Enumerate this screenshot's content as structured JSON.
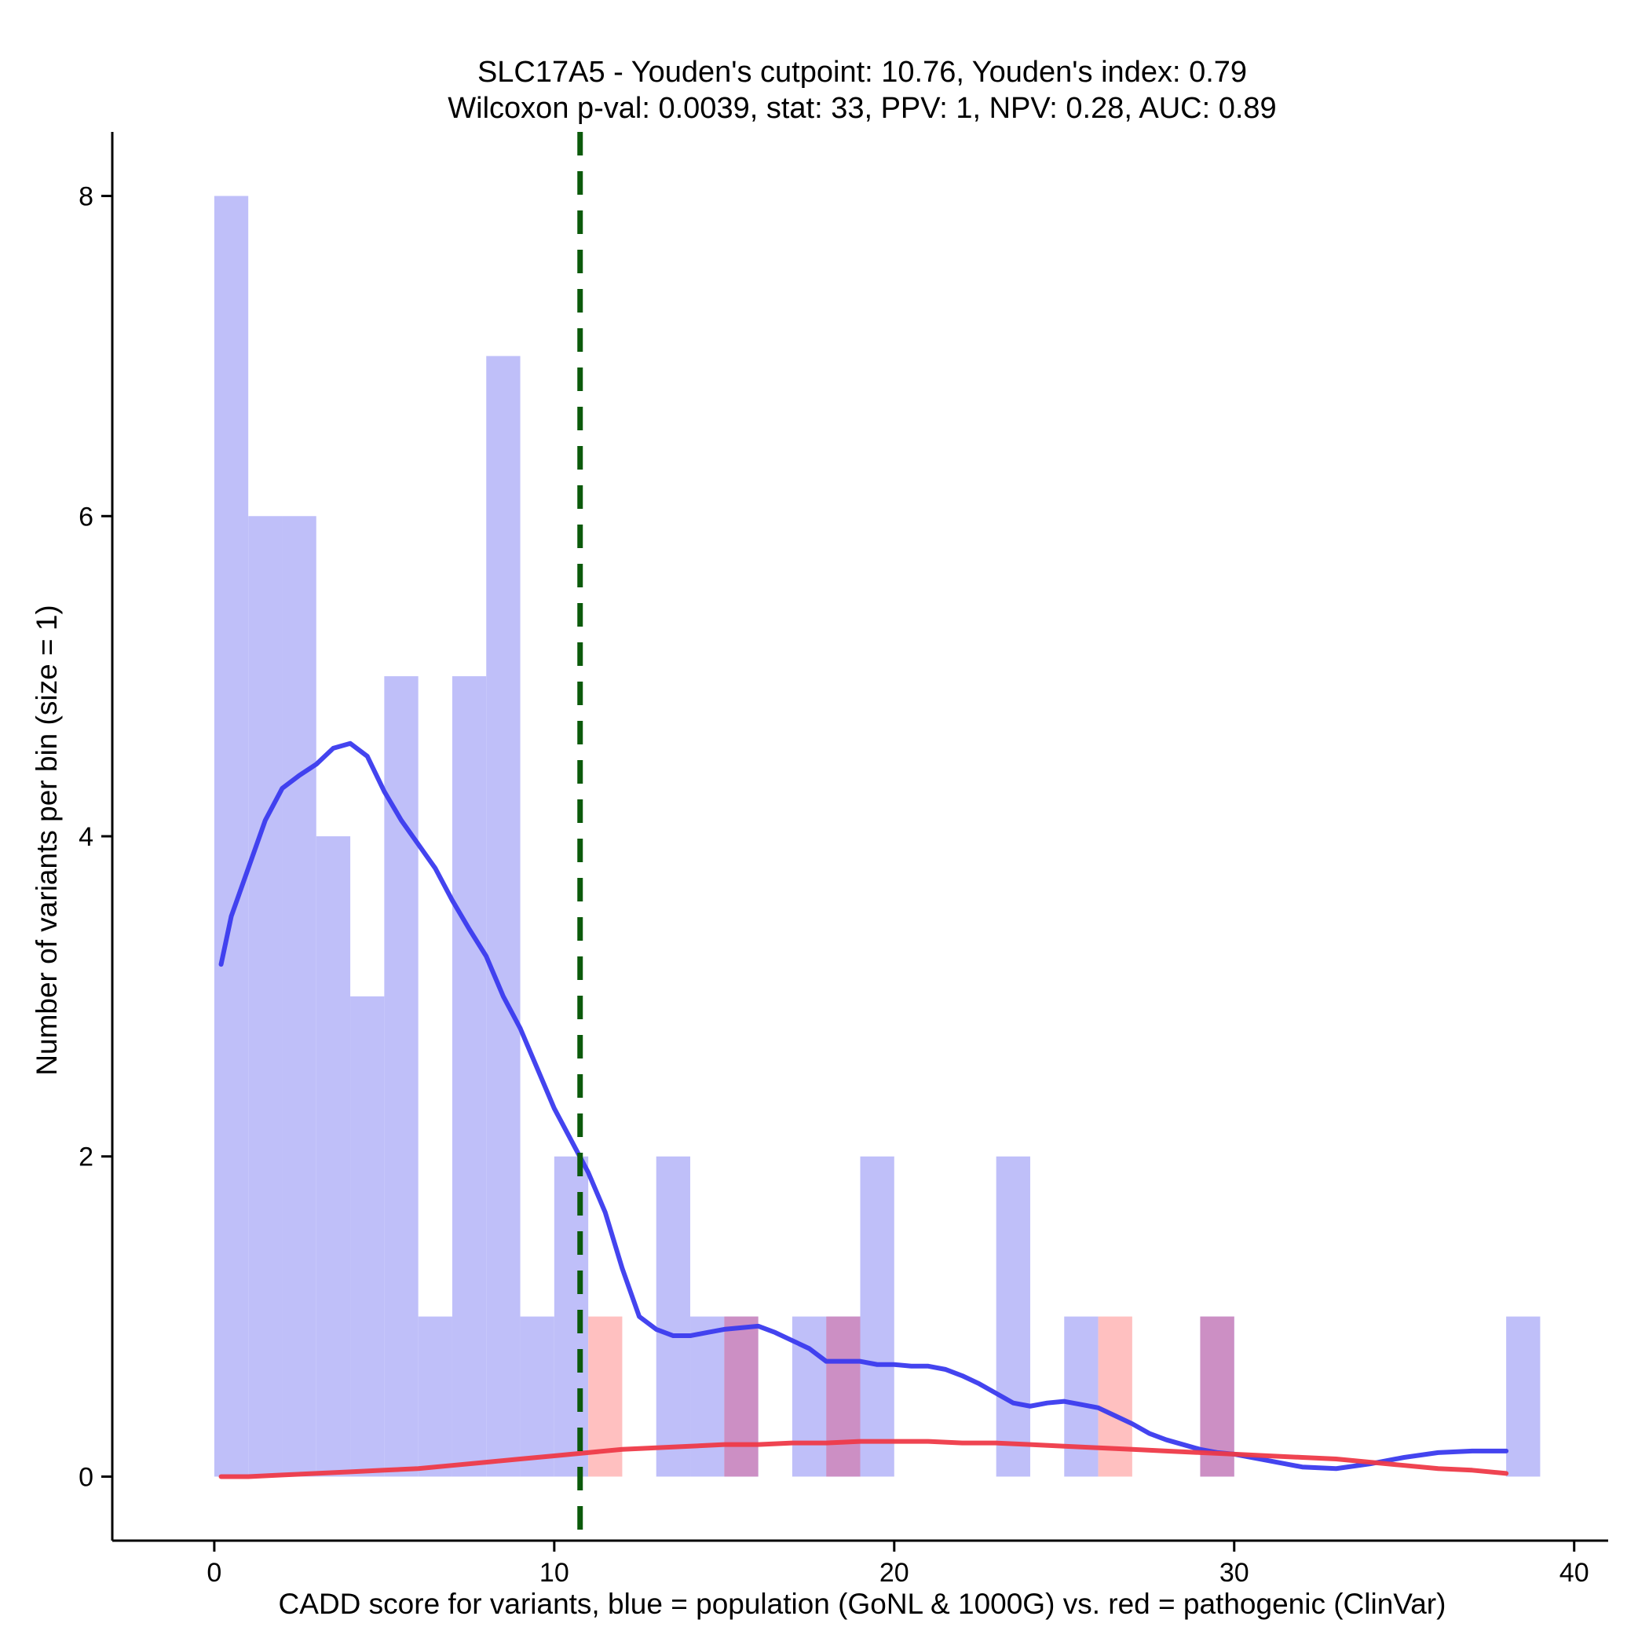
{
  "chart_data": {
    "type": "bar",
    "title_line1": "SLC17A5 - Youden's cutpoint: 10.76, Youden's index: 0.79",
    "title_line2": "Wilcoxon p-val: 0.0039, stat: 33, PPV: 1, NPV: 0.28, AUC: 0.89",
    "xlabel": "CADD score for variants, blue = population (GoNL & 1000G) vs. red = pathogenic (ClinVar)",
    "ylabel": "Number of variants per bin (size = 1)",
    "xlim": [
      -3.0,
      41.0
    ],
    "ylim": [
      -0.4,
      8.4
    ],
    "x_ticks": [
      0,
      10,
      20,
      30,
      40
    ],
    "x_tick_labels": [
      "0",
      "10",
      "20",
      "30",
      "40"
    ],
    "y_ticks": [
      0,
      2,
      4,
      6,
      8
    ],
    "y_tick_labels": [
      "0",
      "2",
      "4",
      "6",
      "8"
    ],
    "cutpoint": 10.76,
    "colors": {
      "population_bar": "#bfbff9",
      "pathogenic_bar": "#ffc0c0",
      "overlap_bar": "#cc8fc4",
      "population_line": "#3a3aee",
      "pathogenic_line": "#ee3a48",
      "cutpoint_line": "#0b5a0b",
      "axis": "#000000"
    },
    "series": [
      {
        "name": "population (GoNL & 1000G)",
        "bins": [
          {
            "start": 0,
            "count": 8
          },
          {
            "start": 1,
            "count": 6
          },
          {
            "start": 2,
            "count": 6
          },
          {
            "start": 3,
            "count": 4
          },
          {
            "start": 4,
            "count": 3
          },
          {
            "start": 5,
            "count": 5
          },
          {
            "start": 6,
            "count": 1
          },
          {
            "start": 7,
            "count": 5
          },
          {
            "start": 8,
            "count": 7
          },
          {
            "start": 9,
            "count": 1
          },
          {
            "start": 10,
            "count": 2
          },
          {
            "start": 13,
            "count": 2
          },
          {
            "start": 14,
            "count": 1
          },
          {
            "start": 15,
            "count": 1
          },
          {
            "start": 17,
            "count": 1
          },
          {
            "start": 18,
            "count": 1
          },
          {
            "start": 19,
            "count": 2
          },
          {
            "start": 23,
            "count": 2
          },
          {
            "start": 25,
            "count": 1
          },
          {
            "start": 29,
            "count": 1
          },
          {
            "start": 38,
            "count": 1
          }
        ],
        "density_x": [
          0.2,
          0.5,
          1.0,
          1.5,
          2.0,
          2.5,
          3.0,
          3.5,
          4.0,
          4.5,
          5.0,
          5.5,
          6.0,
          6.5,
          7.0,
          7.5,
          8.0,
          8.5,
          9.0,
          9.5,
          10.0,
          10.5,
          11.0,
          11.5,
          12.0,
          12.5,
          13.0,
          13.5,
          14.0,
          14.5,
          15.0,
          15.5,
          16.0,
          16.5,
          17.0,
          17.5,
          18.0,
          18.5,
          19.0,
          19.5,
          20.0,
          20.5,
          21.0,
          21.5,
          22.0,
          22.5,
          23.0,
          23.5,
          24.0,
          24.5,
          25.0,
          25.5,
          26.0,
          26.5,
          27.0,
          27.5,
          28.0,
          28.5,
          29.0,
          29.5,
          30.0,
          31.0,
          32.0,
          33.0,
          34.0,
          35.0,
          36.0,
          37.0,
          38.0
        ],
        "density_y": [
          3.2,
          3.5,
          3.8,
          4.1,
          4.3,
          4.38,
          4.45,
          4.55,
          4.58,
          4.5,
          4.28,
          4.1,
          3.95,
          3.8,
          3.6,
          3.42,
          3.25,
          3.0,
          2.8,
          2.55,
          2.3,
          2.1,
          1.9,
          1.65,
          1.3,
          1.0,
          0.92,
          0.88,
          0.88,
          0.9,
          0.92,
          0.93,
          0.94,
          0.9,
          0.85,
          0.8,
          0.72,
          0.72,
          0.72,
          0.7,
          0.7,
          0.69,
          0.69,
          0.67,
          0.63,
          0.58,
          0.52,
          0.46,
          0.44,
          0.46,
          0.47,
          0.45,
          0.43,
          0.38,
          0.33,
          0.27,
          0.23,
          0.2,
          0.17,
          0.15,
          0.14,
          0.1,
          0.06,
          0.05,
          0.08,
          0.12,
          0.15,
          0.16,
          0.16
        ]
      },
      {
        "name": "pathogenic (ClinVar)",
        "bins": [
          {
            "start": 11,
            "count": 1
          },
          {
            "start": 15,
            "count": 1
          },
          {
            "start": 18,
            "count": 1
          },
          {
            "start": 26,
            "count": 1
          },
          {
            "start": 29,
            "count": 1
          }
        ],
        "density_x": [
          0.2,
          1.0,
          2.0,
          3.0,
          4.0,
          5.0,
          6.0,
          7.0,
          8.0,
          9.0,
          10.0,
          11.0,
          12.0,
          13.0,
          14.0,
          15.0,
          16.0,
          17.0,
          18.0,
          19.0,
          20.0,
          21.0,
          22.0,
          23.0,
          24.0,
          25.0,
          26.0,
          27.0,
          28.0,
          29.0,
          30.0,
          31.0,
          32.0,
          33.0,
          34.0,
          35.0,
          36.0,
          37.0,
          38.0
        ],
        "density_y": [
          0.0,
          0.0,
          0.01,
          0.02,
          0.03,
          0.04,
          0.05,
          0.07,
          0.09,
          0.11,
          0.13,
          0.15,
          0.17,
          0.18,
          0.19,
          0.2,
          0.2,
          0.21,
          0.21,
          0.22,
          0.22,
          0.22,
          0.21,
          0.21,
          0.2,
          0.19,
          0.18,
          0.17,
          0.16,
          0.15,
          0.14,
          0.13,
          0.12,
          0.11,
          0.09,
          0.07,
          0.05,
          0.04,
          0.02
        ]
      }
    ]
  }
}
